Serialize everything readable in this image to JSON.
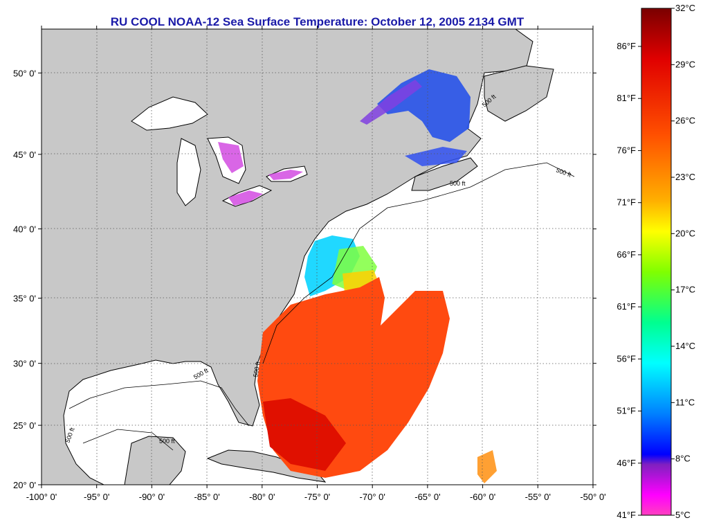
{
  "title": "RU COOL  NOAA-12  Sea Surface Temperature:  October 12, 2005 2134 GMT",
  "map": {
    "lon_range": [
      -100,
      -50
    ],
    "lat_range": [
      20,
      52.5
    ],
    "lat_ticks": [
      {
        "value": 20,
        "label": "20° 0'"
      },
      {
        "value": 25,
        "label": "25° 0'"
      },
      {
        "value": 30,
        "label": "30° 0'"
      },
      {
        "value": 35,
        "label": "35° 0'"
      },
      {
        "value": 40,
        "label": "40° 0'"
      },
      {
        "value": 45,
        "label": "45° 0'"
      },
      {
        "value": 50,
        "label": "50° 0'"
      }
    ],
    "lon_ticks": [
      {
        "value": -100,
        "label": "-100° 0'"
      },
      {
        "value": -95,
        "label": "-95° 0'"
      },
      {
        "value": -90,
        "label": "-90° 0'"
      },
      {
        "value": -85,
        "label": "-85° 0'"
      },
      {
        "value": -80,
        "label": "-80° 0'"
      },
      {
        "value": -75,
        "label": "-75° 0'"
      },
      {
        "value": -70,
        "label": "-70° 0'"
      },
      {
        "value": -65,
        "label": "-65° 0'"
      },
      {
        "value": -60,
        "label": "-60° 0'"
      },
      {
        "value": -55,
        "label": "-55° 0'"
      },
      {
        "value": -50,
        "label": "-50° 0'"
      }
    ],
    "isobath_labels": [
      "500 ft",
      "500 ft",
      "500 ft",
      "500 ft",
      "500 ft",
      "500 ft",
      "500 ft"
    ],
    "colors": {
      "land": "#c8c8c8",
      "ocean": "#ffffff",
      "coast": "#000000",
      "grid": "#555555"
    }
  },
  "colorbar": {
    "celsius_range": [
      5,
      32
    ],
    "celsius_labels": [
      "32°C",
      "29°C",
      "26°C",
      "23°C",
      "20°C",
      "17°C",
      "14°C",
      "11°C",
      "8°C",
      "5°C"
    ],
    "fahrenheit_labels": [
      "86°F",
      "81°F",
      "76°F",
      "71°F",
      "66°F",
      "61°F",
      "56°F",
      "51°F",
      "46°F",
      "41°F"
    ],
    "stops": [
      "#7a0000",
      "#e00000",
      "#ff5000",
      "#ffb000",
      "#ffff00",
      "#80ff00",
      "#00ff90",
      "#00ffff",
      "#0080ff",
      "#0000ff",
      "#8020c0",
      "#ff00ff",
      "#ff40c0"
    ]
  }
}
